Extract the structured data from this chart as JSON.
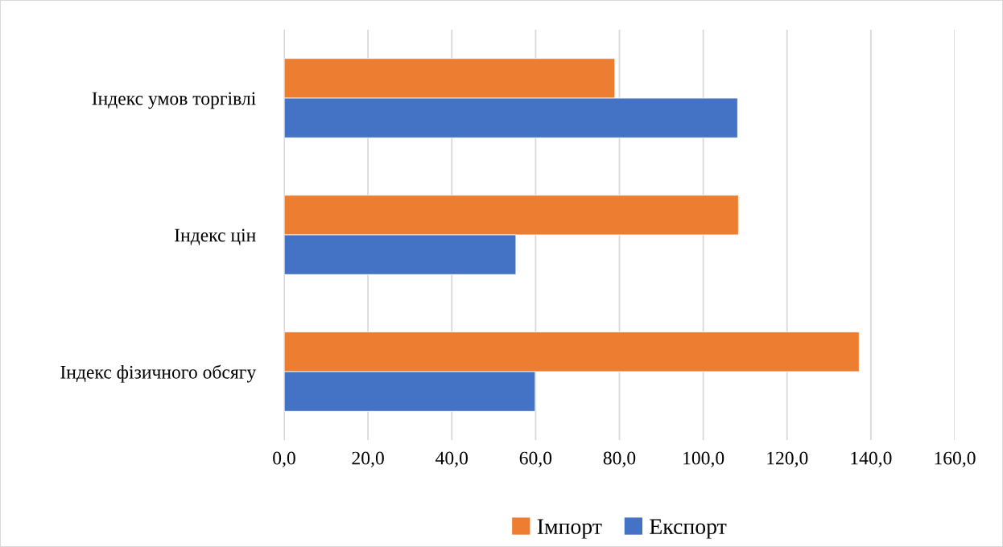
{
  "chart_data": {
    "type": "bar",
    "orientation": "horizontal",
    "categories": [
      "Індекс умов торгівлі",
      "Індекс цін",
      "Індекс фізичного обсягу"
    ],
    "series": [
      {
        "name": "Імпорт",
        "color": "#ed7d31",
        "values": [
          78.9,
          108.4,
          137.2
        ]
      },
      {
        "name": "Експорт",
        "color": "#4472c4",
        "values": [
          108.2,
          55.3,
          59.9
        ]
      }
    ],
    "xlim": [
      0,
      160
    ],
    "xticks": [
      {
        "value": 0,
        "label": "0,0"
      },
      {
        "value": 20,
        "label": "20,0"
      },
      {
        "value": 40,
        "label": "40,0"
      },
      {
        "value": 60,
        "label": "60,0"
      },
      {
        "value": 80,
        "label": "80,0"
      },
      {
        "value": 100,
        "label": "100,0"
      },
      {
        "value": 120,
        "label": "120,0"
      },
      {
        "value": 140,
        "label": "140,0"
      },
      {
        "value": 160,
        "label": "160,0"
      }
    ],
    "grid": "x",
    "legend": "bottom"
  }
}
